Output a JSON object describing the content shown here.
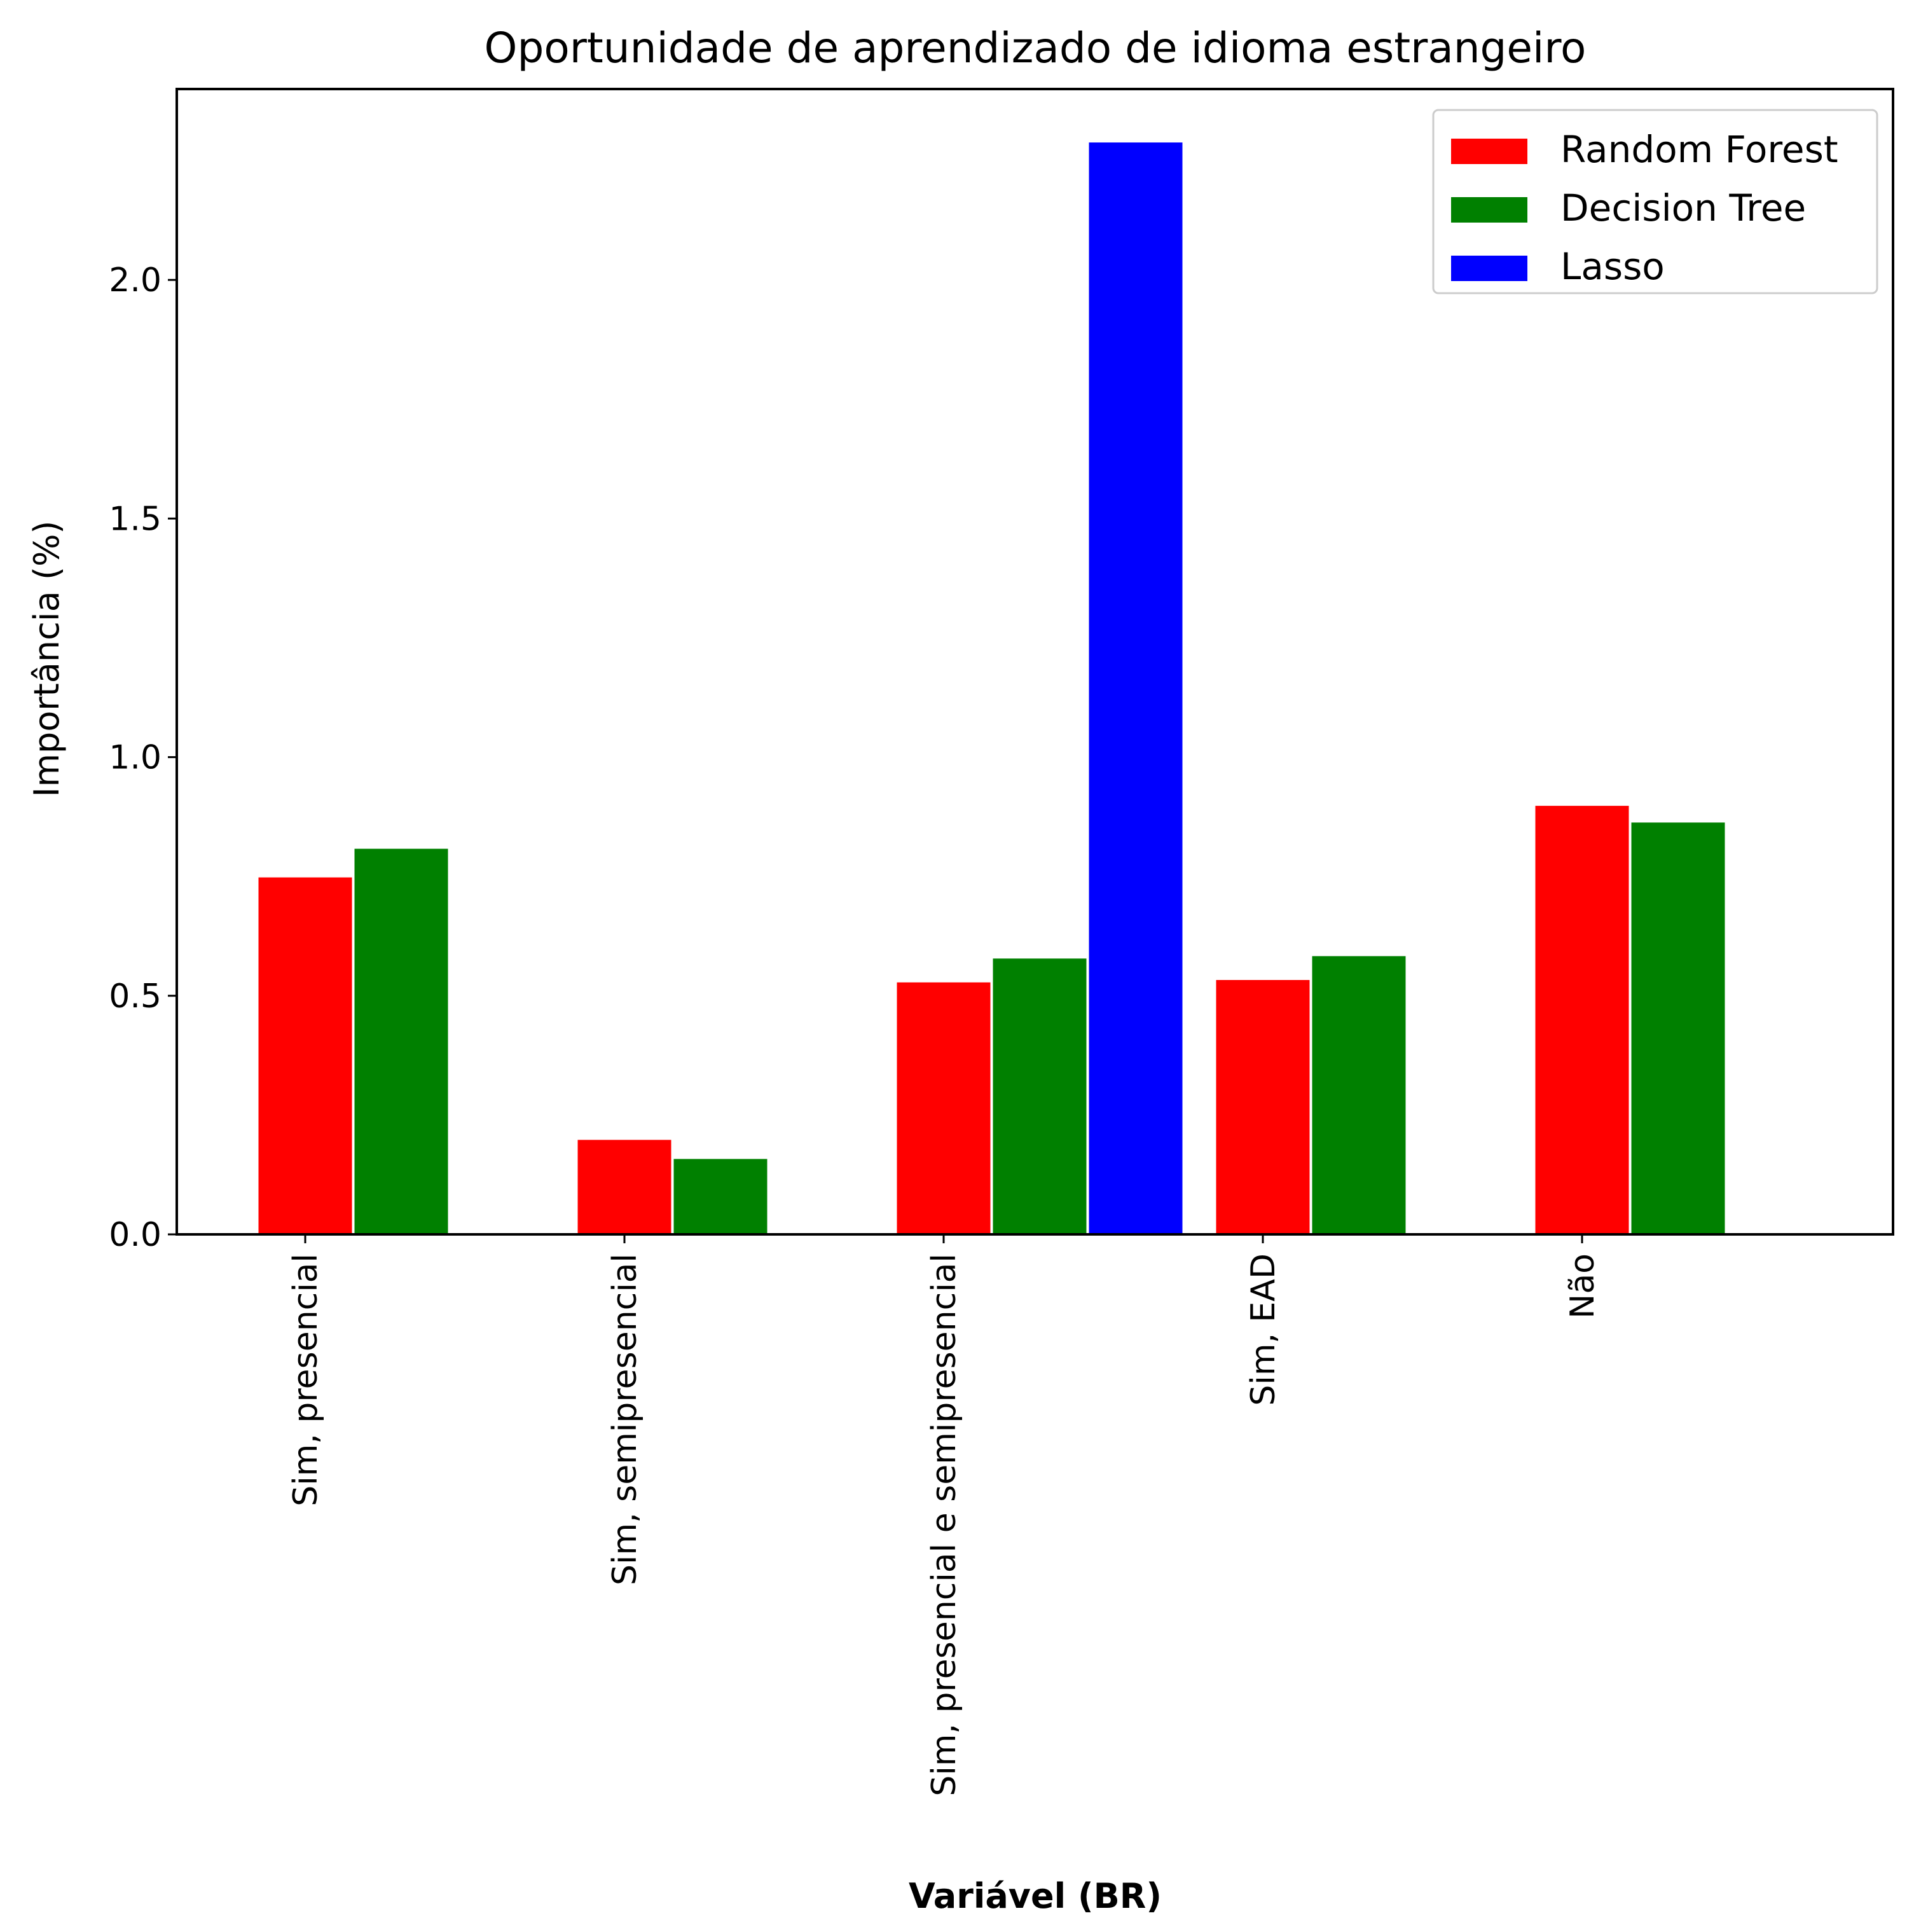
{
  "chart_data": {
    "type": "bar",
    "title": "Oportunidade de aprendizado de idioma estrangeiro",
    "xlabel": "Variável (BR)",
    "ylabel": "Importância (%)",
    "categories": [
      "Sim, presencial",
      "Sim, semipresencial",
      "Sim, presencial e semipresencial",
      "Sim, EAD",
      "Não"
    ],
    "series": [
      {
        "name": "Random Forest",
        "color": "#ff0000",
        "values": [
          0.75,
          0.2,
          0.53,
          0.535,
          0.9
        ]
      },
      {
        "name": "Decision Tree",
        "color": "#008000",
        "values": [
          0.81,
          0.16,
          0.58,
          0.585,
          0.865
        ]
      },
      {
        "name": "Lasso",
        "color": "#0000ff",
        "values": [
          0,
          0,
          2.29,
          0,
          0
        ]
      }
    ],
    "ylim": [
      0,
      2.4
    ],
    "yticks": [
      0.0,
      0.5,
      1.0,
      1.5,
      2.0
    ],
    "ytick_labels": [
      "0.0",
      "0.5",
      "1.0",
      "1.5",
      "2.0"
    ],
    "legend_position": "top-right",
    "grid": false
  }
}
